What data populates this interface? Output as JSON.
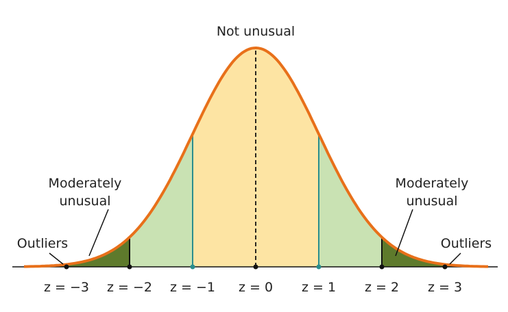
{
  "title": "Not unusual",
  "regions": {
    "moderate_left": [
      "Moderately",
      "unusual"
    ],
    "moderate_right": [
      "Moderately",
      "unusual"
    ],
    "outliers_left": "Outliers",
    "outliers_right": "Outliers"
  },
  "axis_labels": [
    "z = −3",
    "z = −2",
    "z = −1",
    "z = 0",
    "z = 1",
    "z = 2",
    "z = 3"
  ]
}
